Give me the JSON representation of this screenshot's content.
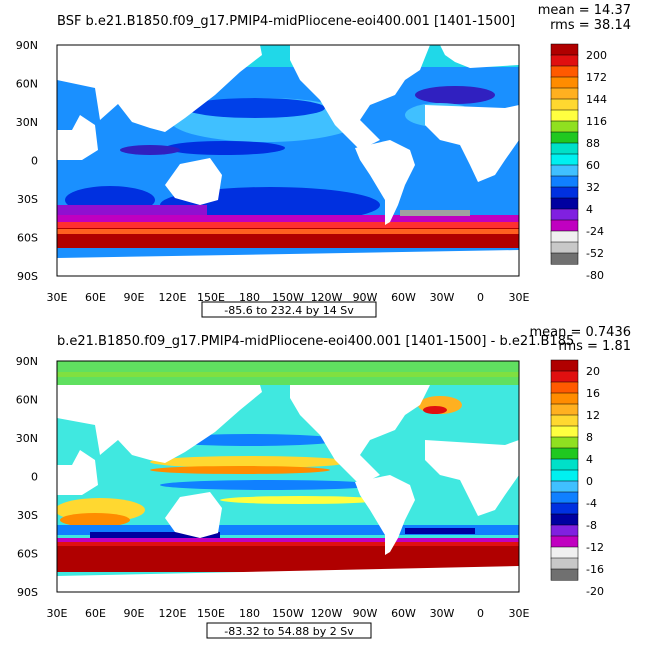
{
  "chart_data": [
    {
      "type": "heatmap",
      "title": "BSF b.e21.B1850.f09_g17.PMIP4-midPliocene-eoi400.001  [1401-1500]",
      "stats": {
        "mean": "mean = 14.37",
        "rms": "rms = 38.14"
      },
      "range_label": "-85.6 to 232.4 by 14 Sv",
      "x_ticks": [
        "30E",
        "60E",
        "90E",
        "120E",
        "150E",
        "180",
        "150W",
        "120W",
        "90W",
        "60W",
        "30W",
        "0",
        "30E"
      ],
      "y_ticks": [
        "90N",
        "60N",
        "30N",
        "0",
        "30S",
        "60S",
        "90S"
      ],
      "colorbar": {
        "labels": [
          "200",
          "172",
          "144",
          "116",
          "88",
          "60",
          "32",
          "4",
          "-24",
          "-52",
          "-80"
        ],
        "colors": [
          "#b00000",
          "#e01010",
          "#ff5a00",
          "#ff8c00",
          "#ffb020",
          "#ffd830",
          "#ffff40",
          "#90e020",
          "#20c820",
          "#00e0c8",
          "#00f0f0",
          "#40c0ff",
          "#1080ff",
          "#0030e0",
          "#0000a0",
          "#8020e0",
          "#c000c0",
          "#f0f0f0",
          "#c8c8c8",
          "#707070"
        ]
      },
      "ylim": [
        -90,
        90
      ],
      "xlim": [
        30,
        390
      ]
    },
    {
      "type": "heatmap",
      "title": "b.e21.B1850.f09_g17.PMIP4-midPliocene-eoi400.001  [1401-1500] - b.e21.B185",
      "stats": {
        "mean": "mean = 0.7436",
        "rms": "rms = 1.81"
      },
      "range_label": "-83.32 to 54.88 by 2 Sv",
      "x_ticks": [
        "30E",
        "60E",
        "90E",
        "120E",
        "150E",
        "180",
        "150W",
        "120W",
        "90W",
        "60W",
        "30W",
        "0",
        "30E"
      ],
      "y_ticks": [
        "90N",
        "60N",
        "30N",
        "0",
        "30S",
        "60S",
        "90S"
      ],
      "colorbar": {
        "labels": [
          "20",
          "16",
          "12",
          "8",
          "4",
          "0",
          "-4",
          "-8",
          "-12",
          "-16",
          "-20"
        ],
        "colors": [
          "#b00000",
          "#e01010",
          "#ff5a00",
          "#ff8c00",
          "#ffb020",
          "#ffd830",
          "#ffff40",
          "#90e020",
          "#20c820",
          "#00e0c8",
          "#00f0f0",
          "#40c0ff",
          "#1080ff",
          "#0030e0",
          "#0000a0",
          "#8020e0",
          "#c000c0",
          "#f0f0f0",
          "#c8c8c8",
          "#707070"
        ]
      },
      "ylim": [
        -90,
        90
      ],
      "xlim": [
        30,
        390
      ]
    }
  ]
}
